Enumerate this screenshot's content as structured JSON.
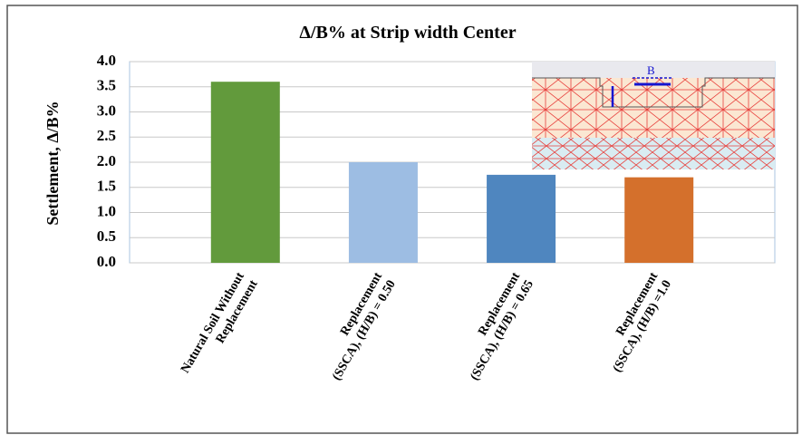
{
  "chart_data": {
    "type": "bar",
    "title": "Δ/B% at Strip width Center",
    "y_label": "Settlement, Δ/B%",
    "categories": [
      [
        "Natural Soil Without",
        "Replacement"
      ],
      [
        "Replacement",
        "(SSCA), (H/B) = 0.50"
      ],
      [
        "Replacement",
        "(SSCA), (H/B) = 0.65"
      ],
      [
        "Replacement",
        "(SSCA), (H/B) =1.0"
      ]
    ],
    "values": [
      3.6,
      2.0,
      1.75,
      1.7
    ],
    "colors": [
      "#629a3c",
      "#9dbde3",
      "#4f86bf",
      "#d4702c"
    ],
    "ylim": [
      0,
      4
    ],
    "yticks": [
      {
        "value": 0,
        "label": "0.0"
      },
      {
        "value": 0.5,
        "label": "0.5"
      },
      {
        "value": 1,
        "label": "1.0"
      },
      {
        "value": 1.5,
        "label": "1.5"
      },
      {
        "value": 2,
        "label": "2.0"
      },
      {
        "value": 2.5,
        "label": "2.5"
      },
      {
        "value": 3,
        "label": "3.0"
      },
      {
        "value": 3.5,
        "label": "3.5"
      },
      {
        "value": 4,
        "label": "4.0"
      }
    ],
    "grid": true,
    "inset_label": "B"
  }
}
